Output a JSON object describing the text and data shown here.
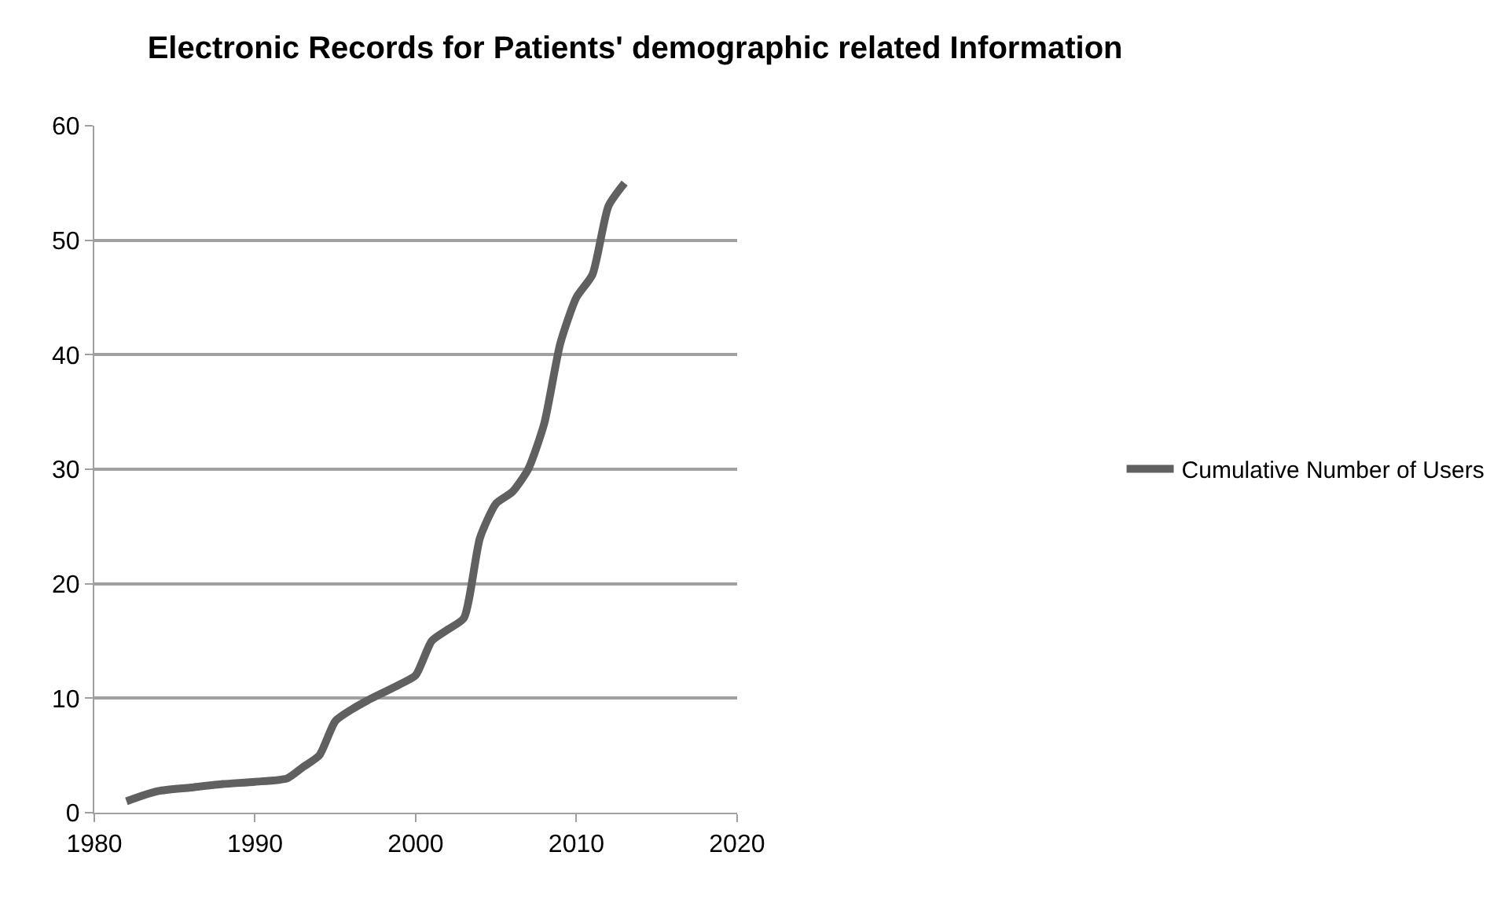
{
  "chart_data": {
    "type": "line",
    "title": "Electronic Records for Patients' demographic related Information",
    "x": [
      1982,
      1983,
      1984,
      1986,
      1988,
      1990,
      1992,
      1993,
      1994,
      1995,
      1996,
      1997,
      1998,
      1999,
      2000,
      2001,
      2002,
      2003,
      2004,
      2005,
      2006,
      2007,
      2008,
      2009,
      2010,
      2011,
      2012,
      2013
    ],
    "series": [
      {
        "name": "Cumulative Number of Users",
        "color": "#606060",
        "values": [
          1,
          1.5,
          1.9,
          2.2,
          2.5,
          2.7,
          3,
          4,
          5,
          8,
          9,
          9.8,
          10.5,
          11.2,
          12,
          15,
          16,
          17,
          24,
          27,
          28,
          30,
          34,
          41,
          45,
          47,
          53,
          55
        ]
      }
    ],
    "xlim": [
      1980,
      2020
    ],
    "xticks": [
      1980,
      1990,
      2000,
      2010,
      2020
    ],
    "ylim": [
      0,
      60
    ],
    "yticks": [
      0,
      10,
      20,
      30,
      40,
      50,
      60
    ],
    "grid": "y",
    "legend": "right",
    "marker": "none",
    "line_style": "solid"
  }
}
